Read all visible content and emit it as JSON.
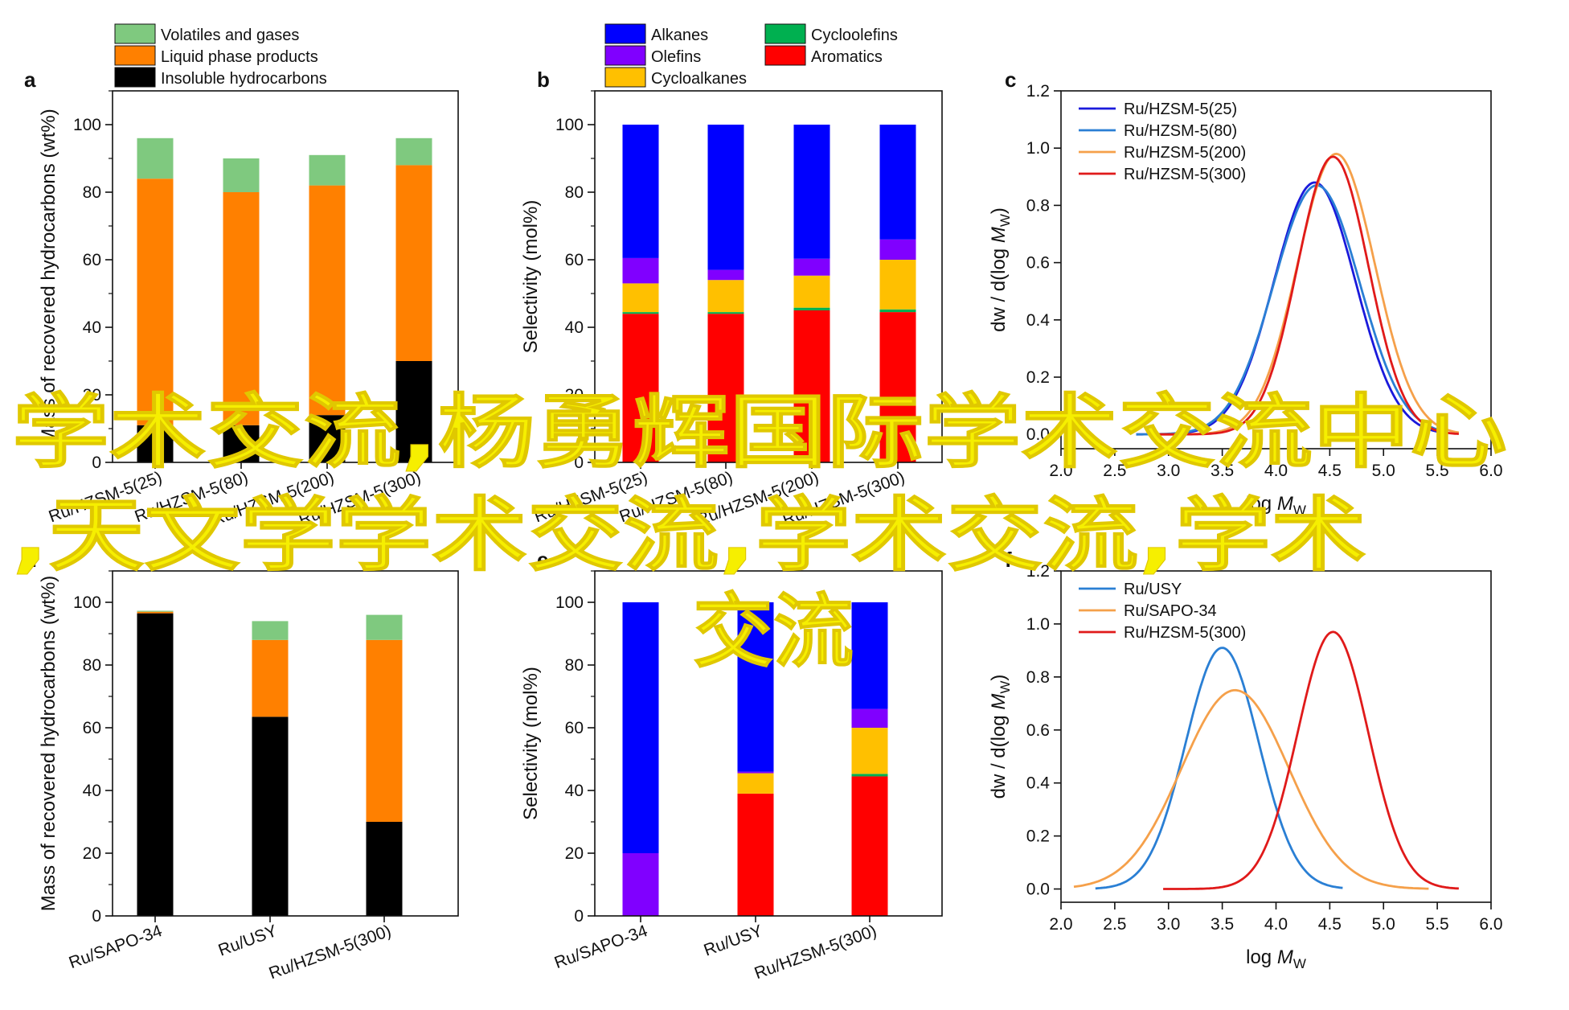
{
  "chart_data": [
    {
      "panel": "a",
      "type": "bar",
      "stacked": true,
      "categories": [
        "Ru/HZSM-5(25)",
        "Ru/HZSM-5(80)",
        "Ru/HZSM-5(200)",
        "Ru/HZSM-5(300)"
      ],
      "series": [
        {
          "name": "Insoluble hydrocarbons",
          "color": "#000000",
          "values": [
            11,
            11,
            14,
            30
          ]
        },
        {
          "name": "Liquid phase products",
          "color": "#ff8000",
          "values": [
            73,
            69,
            68,
            58
          ]
        },
        {
          "name": "Volatiles and gases",
          "color": "#7fc97f",
          "values": [
            12,
            10,
            9,
            8
          ]
        }
      ],
      "ylabel": "Mass of recovered hydrocarbons (wt%)",
      "ylim": [
        0,
        110
      ],
      "yticks": [
        0,
        20,
        40,
        60,
        80,
        100
      ],
      "legend_placement": "top"
    },
    {
      "panel": "b",
      "type": "bar",
      "stacked": true,
      "categories": [
        "Ru/HZSM-5(25)",
        "Ru/HZSM-5(80)",
        "Ru/HZSM-5(200)",
        "Ru/HZSM-5(300)"
      ],
      "series": [
        {
          "name": "Aromatics",
          "color": "#ff0000",
          "values": [
            44,
            44,
            45,
            44.5
          ]
        },
        {
          "name": "Cycloolefins",
          "color": "#00b050",
          "values": [
            0.5,
            0.5,
            0.8,
            0.8
          ]
        },
        {
          "name": "Cycloalkanes",
          "color": "#ffc000",
          "values": [
            8.5,
            9.5,
            9.5,
            14.7
          ]
        },
        {
          "name": "Olefins",
          "color": "#8000ff",
          "values": [
            7.5,
            3,
            5,
            6
          ]
        },
        {
          "name": "Alkanes",
          "color": "#0000ff",
          "values": [
            39.5,
            43,
            39.7,
            34
          ]
        }
      ],
      "ylabel": "Selectivity (mol%)",
      "ylim": [
        0,
        110
      ],
      "yticks": [
        0,
        20,
        40,
        60,
        80,
        100
      ],
      "legend_placement": "top"
    },
    {
      "panel": "c",
      "type": "line",
      "xlabel": "log M",
      "xlabel_sub": "W",
      "ylabel": "dw / d(log M",
      "ylabel_sub": "W",
      "ylabel_end": ")",
      "xlim": [
        2.0,
        6.0
      ],
      "ylim": [
        -0.05,
        1.2
      ],
      "xticks": [
        2.0,
        2.5,
        3.0,
        3.5,
        4.0,
        4.5,
        5.0,
        5.5,
        6.0
      ],
      "yticks": [
        0.0,
        0.2,
        0.4,
        0.6,
        0.8,
        1.0,
        1.2
      ],
      "legend_placement": "top-left",
      "series": [
        {
          "name": "Ru/HZSM-5(25)",
          "color": "#1a1adb",
          "mu": 4.36,
          "sigma": 0.38,
          "peak": 0.88,
          "xmin": 2.7,
          "xmax": 5.6
        },
        {
          "name": "Ru/HZSM-5(80)",
          "color": "#2a7fd4",
          "mu": 4.38,
          "sigma": 0.4,
          "peak": 0.87,
          "xmin": 2.7,
          "xmax": 5.6
        },
        {
          "name": "Ru/HZSM-5(200)",
          "color": "#f5a04a",
          "mu": 4.56,
          "sigma": 0.36,
          "peak": 0.98,
          "xmin": 2.9,
          "xmax": 5.7
        },
        {
          "name": "Ru/HZSM-5(300)",
          "color": "#e01a1a",
          "mu": 4.53,
          "sigma": 0.33,
          "peak": 0.97,
          "xmin": 2.9,
          "xmax": 5.7
        }
      ]
    },
    {
      "panel": "d",
      "type": "bar",
      "stacked": true,
      "categories": [
        "Ru/SAPO-34",
        "Ru/USY",
        "Ru/HZSM-5(300)"
      ],
      "series": [
        {
          "name": "Insoluble hydrocarbons",
          "color": "#000000",
          "values": [
            96.5,
            63.5,
            30
          ]
        },
        {
          "name": "Liquid phase products",
          "color": "#ff8000",
          "values": [
            0.5,
            24.5,
            58
          ]
        },
        {
          "name": "Volatiles and gases",
          "color": "#7fc97f",
          "values": [
            0.3,
            6,
            8
          ]
        }
      ],
      "ylabel": "Mass of recovered hydrocarbons (wt%)",
      "ylim": [
        0,
        110
      ],
      "yticks": [
        0,
        20,
        40,
        60,
        80,
        100
      ]
    },
    {
      "panel": "e",
      "type": "bar",
      "stacked": true,
      "categories": [
        "Ru/SAPO-34",
        "Ru/USY",
        "Ru/HZSM-5(300)"
      ],
      "series": [
        {
          "name": "Olefins",
          "color": "#8000ff",
          "values": [
            20,
            0,
            0
          ]
        },
        {
          "name": "Aromatics",
          "color": "#ff0000",
          "values": [
            0,
            39,
            44.5
          ]
        },
        {
          "name": "Cycloolefins",
          "color": "#00b050",
          "values": [
            0,
            0,
            0.8
          ]
        },
        {
          "name": "Cycloalkanes",
          "color": "#ffc000",
          "values": [
            0,
            6.5,
            14.7
          ]
        },
        {
          "name": "Olefins",
          "color": "#8000ff",
          "values": [
            0,
            0.5,
            6
          ]
        },
        {
          "name": "Alkanes",
          "color": "#0000ff",
          "values": [
            80,
            54,
            34
          ]
        }
      ],
      "ylabel": "Selectivity (mol%)",
      "ylim": [
        0,
        110
      ],
      "yticks": [
        0,
        20,
        40,
        60,
        80,
        100
      ]
    },
    {
      "panel": "f",
      "type": "line",
      "xlabel": "log M",
      "xlabel_sub": "W",
      "ylabel": "dw / d(log M",
      "ylabel_sub": "W",
      "ylabel_end": ")",
      "xlim": [
        2.0,
        6.0
      ],
      "ylim": [
        -0.05,
        1.2
      ],
      "xticks": [
        2.0,
        2.5,
        3.0,
        3.5,
        4.0,
        4.5,
        5.0,
        5.5,
        6.0
      ],
      "yticks": [
        0.0,
        0.2,
        0.4,
        0.6,
        0.8,
        1.0,
        1.2
      ],
      "legend_placement": "top-left",
      "series": [
        {
          "name": "Ru/USY",
          "color": "#2a7fd4",
          "mu": 3.5,
          "sigma": 0.34,
          "peak": 0.91,
          "xmin": 2.32,
          "xmax": 4.62
        },
        {
          "name": "Ru/SAPO-34",
          "color": "#f5a04a",
          "mu": 3.62,
          "sigma": 0.5,
          "peak": 0.75,
          "xmin": 2.12,
          "xmax": 5.42
        },
        {
          "name": "Ru/HZSM-5(300)",
          "color": "#e01a1a",
          "mu": 4.53,
          "sigma": 0.33,
          "peak": 0.97,
          "xmin": 2.95,
          "xmax": 5.7
        }
      ]
    }
  ],
  "watermark": {
    "line1": "学术交流,杨勇辉国际学术交流中心",
    "line2": ",天文学学术交流,学术交流,学术",
    "line3": "交流",
    "color": "#f6ef00"
  }
}
